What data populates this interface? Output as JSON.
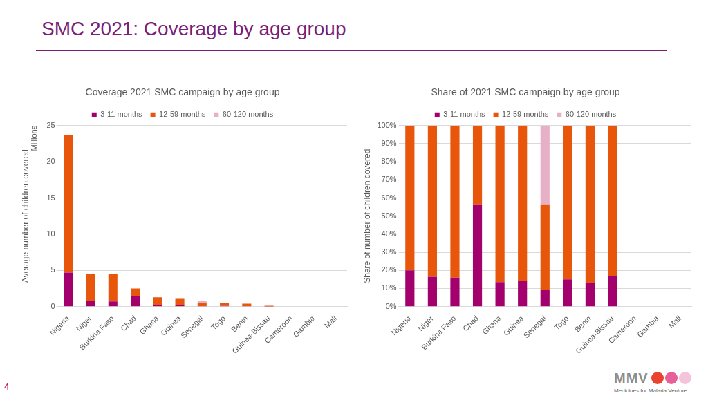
{
  "header": {
    "title": "SMC 2021: Coverage by age group"
  },
  "footer": {
    "page_number": "4",
    "logo": "MMV",
    "logo_caption": "Medicines for Malaria Venture"
  },
  "chart_data": [
    {
      "type": "bar",
      "title": "Coverage 2021 SMC campaign by age group",
      "y_label": "Average number of children covered",
      "annotation": "Millions",
      "categories": [
        "Nigeria",
        "Niger",
        "Burkina Faso",
        "Chad",
        "Ghana",
        "Guinea",
        "Senegal",
        "Togo",
        "Benin",
        "Guinea-Bissau",
        "Cameroon",
        "Gambia",
        "Mali"
      ],
      "series": [
        {
          "name": "3-11 months",
          "color": "#a3006d",
          "values": [
            4.7,
            0.75,
            0.7,
            1.4,
            0.17,
            0.16,
            0.07,
            0.08,
            0.05,
            0.02,
            0,
            0,
            0
          ]
        },
        {
          "name": "12-59 months",
          "color": "#e8560c",
          "values": [
            19.0,
            3.75,
            3.75,
            1.1,
            1.1,
            1.0,
            0.37,
            0.45,
            0.35,
            0.1,
            0,
            0,
            0
          ]
        },
        {
          "name": "60-120 months",
          "color": "#e8b0c6",
          "values": [
            0,
            0,
            0,
            0,
            0,
            0,
            0.33,
            0,
            0,
            0,
            0,
            0,
            0
          ]
        }
      ],
      "ylim": [
        0,
        25
      ],
      "yticks": [
        0,
        5,
        10,
        15,
        20,
        25
      ],
      "stacked": true,
      "grid": true,
      "legend": "top"
    },
    {
      "type": "bar",
      "title": "Share of 2021 SMC campaign by age group",
      "y_label": "Share of number of children covered",
      "categories": [
        "Nigeria",
        "Niger",
        "Burkina Faso",
        "Chad",
        "Ghana",
        "Guinea",
        "Senegal",
        "Togo",
        "Benin",
        "Guinea-Bissau",
        "Cameroon",
        "Gambia",
        "Mali"
      ],
      "series": [
        {
          "name": "3-11 months",
          "color": "#a3006d",
          "values": [
            20,
            16.5,
            16,
            56.5,
            13.5,
            14,
            9,
            15,
            13,
            17,
            0,
            0,
            0
          ]
        },
        {
          "name": "12-59 months",
          "color": "#e8560c",
          "values": [
            80,
            83.5,
            84,
            43.5,
            86.5,
            86,
            47.5,
            85,
            87,
            83,
            0,
            0,
            0
          ]
        },
        {
          "name": "60-120 months",
          "color": "#e8b0c6",
          "values": [
            0,
            0,
            0,
            0,
            0,
            0,
            43.5,
            0,
            0,
            0,
            0,
            0,
            0
          ]
        }
      ],
      "ylim": [
        0,
        100
      ],
      "yticks": [
        {
          "value": 0,
          "label": "0%"
        },
        {
          "value": 10,
          "label": "10%"
        },
        {
          "value": 20,
          "label": "20%"
        },
        {
          "value": 30,
          "label": "30%"
        },
        {
          "value": 40,
          "label": "40%"
        },
        {
          "value": 50,
          "label": "50%"
        },
        {
          "value": 60,
          "label": "60%"
        },
        {
          "value": 70,
          "label": "70%"
        },
        {
          "value": 80,
          "label": "80%"
        },
        {
          "value": 90,
          "label": "90%"
        },
        {
          "value": 100,
          "label": "100%"
        }
      ],
      "stacked": true,
      "grid": true,
      "legend": "top"
    }
  ]
}
